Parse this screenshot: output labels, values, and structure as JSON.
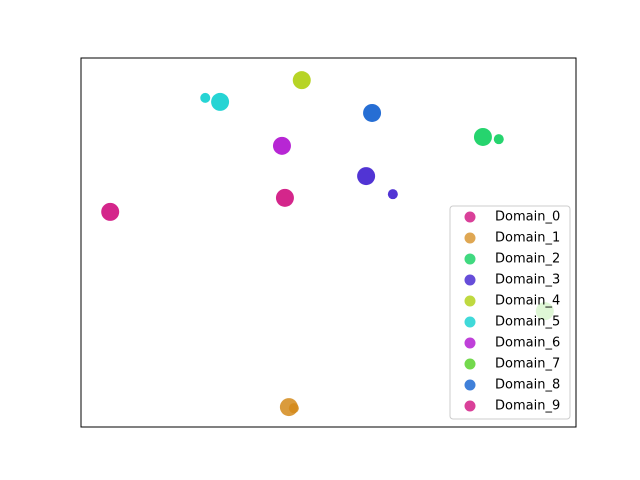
{
  "chart_data": {
    "type": "scatter",
    "xlim": [
      0,
      100
    ],
    "ylim": [
      0,
      100
    ],
    "legend": "lower right",
    "series": [
      {
        "name": "Domain_0",
        "color": "#cc0077",
        "x": [
          5.9
        ],
        "values": [
          58.3
        ]
      },
      {
        "name": "Domain_1",
        "color": "#d48a1a",
        "x": [
          42.0,
          43.0
        ],
        "values": [
          5.4,
          5.1
        ]
      },
      {
        "name": "Domain_2",
        "color": "#00cc55",
        "x": [
          81.2,
          84.4
        ],
        "values": [
          78.6,
          78.0
        ]
      },
      {
        "name": "Domain_3",
        "color": "#3311cc",
        "x": [
          57.6,
          63.0
        ],
        "values": [
          68.0,
          63.1
        ]
      },
      {
        "name": "Domain_4",
        "color": "#aacc00",
        "x": [
          44.6
        ],
        "values": [
          94.0
        ]
      },
      {
        "name": "Domain_5",
        "color": "#00cccc",
        "x": [
          28.1,
          25.1
        ],
        "values": [
          88.1,
          89.2
        ]
      },
      {
        "name": "Domain_6",
        "color": "#aa00cc",
        "x": [
          40.6
        ],
        "values": [
          76.2
        ]
      },
      {
        "name": "Domain_7",
        "color": "#44cc11",
        "x": [
          93.7
        ],
        "values": [
          31.4
        ]
      },
      {
        "name": "Domain_8",
        "color": "#0055cc",
        "x": [
          58.8
        ],
        "values": [
          85.1
        ]
      },
      {
        "name": "Domain_9",
        "color": "#cc0077",
        "x": [
          41.2
        ],
        "values": [
          62.1
        ]
      }
    ]
  }
}
